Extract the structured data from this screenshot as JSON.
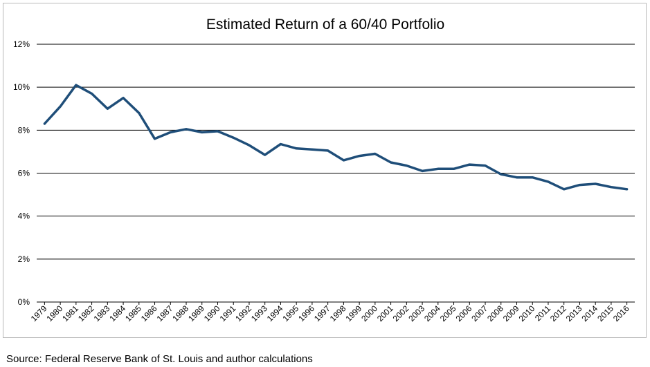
{
  "chart_data": {
    "type": "line",
    "title": "Estimated Return of a 60/40 Portfolio",
    "xlabel": "",
    "ylabel": "",
    "ylim": [
      0,
      12
    ],
    "yticks": [
      "0%",
      "2%",
      "4%",
      "6%",
      "8%",
      "10%",
      "12%"
    ],
    "grid": true,
    "legend": "none",
    "line_color": "#1f4e79",
    "x": [
      "1979",
      "1980",
      "1981",
      "1982",
      "1983",
      "1984",
      "1985",
      "1986",
      "1987",
      "1988",
      "1989",
      "1990",
      "1991",
      "1992",
      "1993",
      "1994",
      "1995",
      "1996",
      "1997",
      "1998",
      "1999",
      "2000",
      "2001",
      "2002",
      "2003",
      "2004",
      "2005",
      "2006",
      "2007",
      "2008",
      "2009",
      "2010",
      "2011",
      "2012",
      "2013",
      "2014",
      "2015",
      "2016"
    ],
    "series": [
      {
        "values": [
          8.3,
          9.1,
          10.1,
          9.7,
          9.0,
          9.5,
          8.8,
          7.6,
          7.9,
          8.05,
          7.9,
          7.95,
          7.65,
          7.3,
          6.85,
          7.35,
          7.15,
          7.1,
          7.05,
          6.6,
          6.8,
          6.9,
          6.5,
          6.35,
          6.1,
          6.2,
          6.2,
          6.4,
          6.35,
          5.95,
          5.8,
          5.8,
          5.6,
          5.25,
          5.45,
          5.5,
          5.35,
          5.25
        ]
      }
    ]
  },
  "footer": {
    "source": "Source: Federal Reserve Bank of St. Louis and author calculations"
  }
}
